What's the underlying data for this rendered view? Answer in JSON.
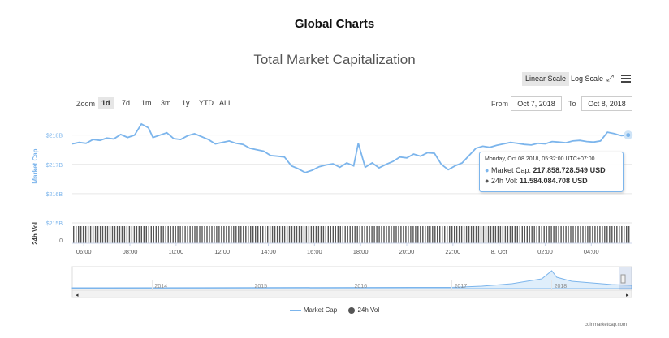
{
  "page": {
    "title": "Global Charts"
  },
  "toolbar": {
    "linear_label": "Linear Scale",
    "log_label": "Log Scale",
    "zoom_label": "Zoom",
    "zoom_options": [
      "1d",
      "7d",
      "1m",
      "3m",
      "1y",
      "YTD",
      "ALL"
    ],
    "zoom_active": "1d",
    "from_label": "From",
    "from_value": "Oct 7, 2018",
    "to_label": "To",
    "to_value": "Oct 8, 2018"
  },
  "tooltip": {
    "date": "Monday, Oct 08 2018, 05:32:00 UTC+07:00",
    "market_cap_label": "Market Cap:",
    "market_cap_value": "217.858.728.549 USD",
    "vol_label": "24h Vol:",
    "vol_value": "11.584.084.708 USD"
  },
  "legend": {
    "market_cap": "Market Cap",
    "vol": "24h Vol"
  },
  "credits": "coinmarketcap.com",
  "colors": {
    "market_cap": "#7cb5ec",
    "volume": "#555555",
    "axis_label": "#7cb5ec"
  },
  "chart_data": {
    "type": "line",
    "title": "Total Market Capitalization",
    "ylabel": "Market Cap",
    "y2label": "24h Vol",
    "yticks": [
      "$218B",
      "$217B",
      "$216B",
      "$215B"
    ],
    "ytick_values": [
      218,
      217,
      216,
      215
    ],
    "vol_ytick": "0",
    "ylim": [
      215,
      218.6
    ],
    "xlim": [
      5.5,
      29.75
    ],
    "xticks": [
      "06:00",
      "08:00",
      "10:00",
      "12:00",
      "14:00",
      "16:00",
      "18:00",
      "20:00",
      "22:00",
      "8. Oct",
      "02:00",
      "04:00"
    ],
    "xtick_values": [
      6,
      8,
      10,
      12,
      14,
      16,
      18,
      20,
      22,
      24,
      26,
      28
    ],
    "series": [
      {
        "name": "Market Cap",
        "x": [
          5.5,
          5.8,
          6.1,
          6.4,
          6.7,
          7.0,
          7.3,
          7.6,
          7.9,
          8.2,
          8.5,
          8.8,
          9.0,
          9.3,
          9.6,
          9.9,
          10.2,
          10.5,
          10.8,
          11.1,
          11.4,
          11.7,
          12.0,
          12.3,
          12.6,
          12.9,
          13.2,
          13.5,
          13.8,
          14.1,
          14.4,
          14.7,
          15.0,
          15.3,
          15.6,
          15.9,
          16.2,
          16.5,
          16.8,
          17.1,
          17.4,
          17.7,
          17.9,
          18.2,
          18.5,
          18.8,
          19.1,
          19.4,
          19.7,
          20.0,
          20.3,
          20.6,
          20.9,
          21.2,
          21.5,
          21.8,
          22.1,
          22.4,
          22.7,
          23.0,
          23.3,
          23.6,
          23.9,
          24.2,
          24.5,
          24.8,
          25.1,
          25.4,
          25.7,
          26.0,
          26.3,
          26.6,
          26.9,
          27.2,
          27.5,
          27.8,
          28.1,
          28.4,
          28.7,
          29.0,
          29.3,
          29.6
        ],
        "values": [
          217.7,
          217.75,
          217.72,
          217.85,
          217.82,
          217.9,
          217.87,
          218.02,
          217.92,
          218.0,
          218.38,
          218.25,
          217.92,
          218.0,
          218.08,
          217.88,
          217.85,
          217.98,
          218.05,
          217.95,
          217.85,
          217.7,
          217.75,
          217.8,
          217.72,
          217.68,
          217.55,
          217.5,
          217.45,
          217.3,
          217.28,
          217.25,
          216.95,
          216.85,
          216.72,
          216.8,
          216.92,
          216.98,
          217.02,
          216.9,
          217.05,
          216.95,
          217.72,
          216.9,
          217.05,
          216.88,
          217.0,
          217.1,
          217.25,
          217.22,
          217.35,
          217.28,
          217.4,
          217.38,
          217.0,
          216.82,
          216.95,
          217.05,
          217.3,
          217.55,
          217.62,
          217.58,
          217.65,
          217.7,
          217.75,
          217.72,
          217.68,
          217.66,
          217.72,
          217.7,
          217.78,
          217.76,
          217.74,
          217.8,
          217.82,
          217.78,
          217.76,
          217.8,
          218.1,
          218.05,
          217.98,
          218.0
        ]
      },
      {
        "name": "24h Vol",
        "note": "dense volume bars across the full range",
        "count": 230
      }
    ],
    "navigator": {
      "labels": [
        "2014",
        "2015",
        "2016",
        "2017",
        "2018"
      ],
      "label_values": [
        2014,
        2015,
        2016,
        2017,
        2018
      ]
    }
  }
}
